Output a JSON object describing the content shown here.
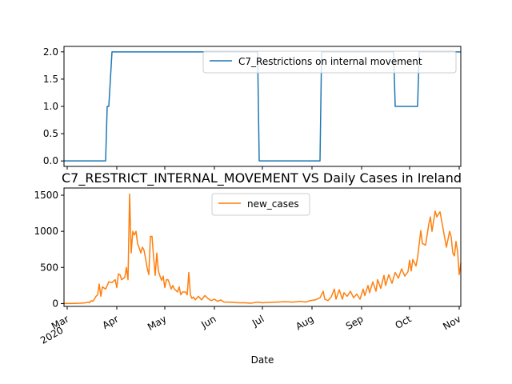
{
  "chart_data": [
    {
      "type": "line",
      "title": "",
      "xlabel": "",
      "ylabel": "",
      "ylim": [
        -0.1,
        2.1
      ],
      "yticks": [
        0.0,
        0.5,
        1.0,
        1.5,
        2.0
      ],
      "ytick_labels": [
        "0.0",
        "0.5",
        "1.0",
        "1.5",
        "2.0"
      ],
      "xlim": [
        "2020-02-28",
        "2020-11-02"
      ],
      "x_tick_labels_shown": false,
      "legend": {
        "position": "upper right",
        "entries": [
          "C7_Restrictions on internal movement"
        ]
      },
      "grid": false,
      "series": [
        {
          "name": "C7_Restrictions on internal movement",
          "color": "#1f77b4",
          "points": [
            [
              "2020-02-28",
              0
            ],
            [
              "2020-03-25",
              0
            ],
            [
              "2020-03-26",
              1
            ],
            [
              "2020-03-27",
              1
            ],
            [
              "2020-03-29",
              2
            ],
            [
              "2020-06-28",
              2
            ],
            [
              "2020-06-29",
              0
            ],
            [
              "2020-08-06",
              0
            ],
            [
              "2020-08-07",
              2
            ],
            [
              "2020-09-21",
              2
            ],
            [
              "2020-09-22",
              1
            ],
            [
              "2020-10-06",
              1
            ],
            [
              "2020-10-07",
              2
            ],
            [
              "2020-11-02",
              2
            ]
          ]
        }
      ]
    },
    {
      "type": "line",
      "title": "C7_RESTRICT_INTERNAL_MOVEMENT VS Daily Cases in Ireland",
      "xlabel": "Date",
      "ylabel": "",
      "ylim": [
        -40,
        1600
      ],
      "yticks": [
        0,
        500,
        1000,
        1500
      ],
      "ytick_labels": [
        "0",
        "500",
        "1000",
        "1500"
      ],
      "xlim": [
        "2020-02-28",
        "2020-11-02"
      ],
      "xticks": [
        {
          "date": "2020-03-01",
          "label": "Mar",
          "sublabel": "2020"
        },
        {
          "date": "2020-04-01",
          "label": "Apr"
        },
        {
          "date": "2020-05-01",
          "label": "May"
        },
        {
          "date": "2020-06-01",
          "label": "Jun"
        },
        {
          "date": "2020-07-01",
          "label": "Jul"
        },
        {
          "date": "2020-08-01",
          "label": "Aug"
        },
        {
          "date": "2020-09-01",
          "label": "Sep"
        },
        {
          "date": "2020-10-01",
          "label": "Oct"
        },
        {
          "date": "2020-11-01",
          "label": "Nov"
        }
      ],
      "legend": {
        "position": "upper center",
        "entries": [
          "new_cases"
        ]
      },
      "grid": false,
      "series": [
        {
          "name": "new_cases",
          "color": "#ff7f0e",
          "points": [
            [
              "2020-02-28",
              0
            ],
            [
              "2020-03-05",
              2
            ],
            [
              "2020-03-09",
              4
            ],
            [
              "2020-03-12",
              8
            ],
            [
              "2020-03-14",
              20
            ],
            [
              "2020-03-15",
              10
            ],
            [
              "2020-03-16",
              40
            ],
            [
              "2020-03-17",
              30
            ],
            [
              "2020-03-18",
              60
            ],
            [
              "2020-03-19",
              100
            ],
            [
              "2020-03-20",
              120
            ],
            [
              "2020-03-21",
              270
            ],
            [
              "2020-03-22",
              100
            ],
            [
              "2020-03-23",
              230
            ],
            [
              "2020-03-25",
              200
            ],
            [
              "2020-03-27",
              300
            ],
            [
              "2020-03-29",
              290
            ],
            [
              "2020-03-31",
              330
            ],
            [
              "2020-04-01",
              220
            ],
            [
              "2020-04-02",
              410
            ],
            [
              "2020-04-03",
              400
            ],
            [
              "2020-04-04",
              330
            ],
            [
              "2020-04-06",
              360
            ],
            [
              "2020-04-07",
              500
            ],
            [
              "2020-04-08",
              330
            ],
            [
              "2020-04-09",
              1515
            ],
            [
              "2020-04-10",
              700
            ],
            [
              "2020-04-11",
              1000
            ],
            [
              "2020-04-12",
              950
            ],
            [
              "2020-04-13",
              1000
            ],
            [
              "2020-04-14",
              830
            ],
            [
              "2020-04-15",
              770
            ],
            [
              "2020-04-16",
              700
            ],
            [
              "2020-04-17",
              780
            ],
            [
              "2020-04-18",
              740
            ],
            [
              "2020-04-19",
              620
            ],
            [
              "2020-04-20",
              490
            ],
            [
              "2020-04-21",
              400
            ],
            [
              "2020-04-22",
              930
            ],
            [
              "2020-04-23",
              930
            ],
            [
              "2020-04-24",
              640
            ],
            [
              "2020-04-25",
              390
            ],
            [
              "2020-04-26",
              700
            ],
            [
              "2020-04-27",
              450
            ],
            [
              "2020-04-28",
              380
            ],
            [
              "2020-04-29",
              320
            ],
            [
              "2020-04-30",
              380
            ],
            [
              "2020-05-01",
              220
            ],
            [
              "2020-05-02",
              330
            ],
            [
              "2020-05-03",
              330
            ],
            [
              "2020-05-04",
              270
            ],
            [
              "2020-05-05",
              200
            ],
            [
              "2020-05-06",
              250
            ],
            [
              "2020-05-07",
              200
            ],
            [
              "2020-05-09",
              160
            ],
            [
              "2020-05-10",
              230
            ],
            [
              "2020-05-11",
              120
            ],
            [
              "2020-05-12",
              160
            ],
            [
              "2020-05-14",
              160
            ],
            [
              "2020-05-15",
              120
            ],
            [
              "2020-05-16",
              430
            ],
            [
              "2020-05-17",
              120
            ],
            [
              "2020-05-18",
              70
            ],
            [
              "2020-05-19",
              90
            ],
            [
              "2020-05-20",
              50
            ],
            [
              "2020-05-22",
              100
            ],
            [
              "2020-05-24",
              50
            ],
            [
              "2020-05-26",
              110
            ],
            [
              "2020-05-28",
              70
            ],
            [
              "2020-05-30",
              40
            ],
            [
              "2020-06-01",
              60
            ],
            [
              "2020-06-03",
              30
            ],
            [
              "2020-06-05",
              50
            ],
            [
              "2020-06-07",
              20
            ],
            [
              "2020-06-10",
              20
            ],
            [
              "2020-06-13",
              15
            ],
            [
              "2020-06-16",
              10
            ],
            [
              "2020-06-20",
              10
            ],
            [
              "2020-06-24",
              5
            ],
            [
              "2020-06-28",
              20
            ],
            [
              "2020-07-01",
              10
            ],
            [
              "2020-07-05",
              15
            ],
            [
              "2020-07-10",
              20
            ],
            [
              "2020-07-15",
              25
            ],
            [
              "2020-07-20",
              20
            ],
            [
              "2020-07-25",
              30
            ],
            [
              "2020-07-28",
              20
            ],
            [
              "2020-07-31",
              40
            ],
            [
              "2020-08-03",
              50
            ],
            [
              "2020-08-06",
              80
            ],
            [
              "2020-08-08",
              170
            ],
            [
              "2020-08-09",
              60
            ],
            [
              "2020-08-11",
              40
            ],
            [
              "2020-08-13",
              90
            ],
            [
              "2020-08-15",
              200
            ],
            [
              "2020-08-16",
              60
            ],
            [
              "2020-08-18",
              190
            ],
            [
              "2020-08-20",
              60
            ],
            [
              "2020-08-21",
              150
            ],
            [
              "2020-08-23",
              100
            ],
            [
              "2020-08-25",
              170
            ],
            [
              "2020-08-27",
              80
            ],
            [
              "2020-08-29",
              130
            ],
            [
              "2020-08-31",
              60
            ],
            [
              "2020-09-02",
              200
            ],
            [
              "2020-09-03",
              110
            ],
            [
              "2020-09-05",
              250
            ],
            [
              "2020-09-06",
              150
            ],
            [
              "2020-09-08",
              300
            ],
            [
              "2020-09-10",
              170
            ],
            [
              "2020-09-11",
              330
            ],
            [
              "2020-09-13",
              210
            ],
            [
              "2020-09-15",
              390
            ],
            [
              "2020-09-16",
              250
            ],
            [
              "2020-09-18",
              400
            ],
            [
              "2020-09-20",
              280
            ],
            [
              "2020-09-22",
              430
            ],
            [
              "2020-09-24",
              350
            ],
            [
              "2020-09-26",
              480
            ],
            [
              "2020-09-28",
              380
            ],
            [
              "2020-09-30",
              440
            ],
            [
              "2020-10-01",
              600
            ],
            [
              "2020-10-02",
              450
            ],
            [
              "2020-10-03",
              610
            ],
            [
              "2020-10-05",
              520
            ],
            [
              "2020-10-06",
              640
            ],
            [
              "2020-10-08",
              1010
            ],
            [
              "2020-10-09",
              830
            ],
            [
              "2020-10-11",
              810
            ],
            [
              "2020-10-13",
              1100
            ],
            [
              "2020-10-14",
              1200
            ],
            [
              "2020-10-15",
              1000
            ],
            [
              "2020-10-17",
              1280
            ],
            [
              "2020-10-18",
              1200
            ],
            [
              "2020-10-20",
              1270
            ],
            [
              "2020-10-21",
              1150
            ],
            [
              "2020-10-23",
              900
            ],
            [
              "2020-10-24",
              780
            ],
            [
              "2020-10-26",
              1000
            ],
            [
              "2020-10-27",
              920
            ],
            [
              "2020-10-28",
              700
            ],
            [
              "2020-10-29",
              660
            ],
            [
              "2020-10-30",
              860
            ],
            [
              "2020-10-31",
              720
            ],
            [
              "2020-11-01",
              400
            ],
            [
              "2020-11-02",
              560
            ]
          ]
        }
      ]
    }
  ]
}
